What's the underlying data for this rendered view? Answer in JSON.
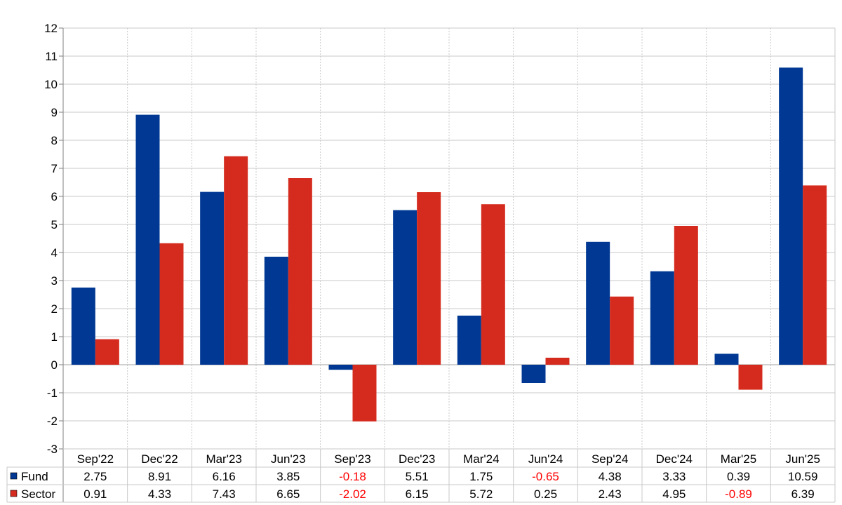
{
  "colors": {
    "fund": "#003893",
    "sector": "#D52B1E",
    "negative_text": "#FF0000",
    "grid": "#C8C8C8",
    "axis": "#808080"
  },
  "chart_data": {
    "type": "bar",
    "categories": [
      "Sep'22",
      "Dec'22",
      "Mar'23",
      "Jun'23",
      "Sep'23",
      "Dec'23",
      "Mar'24",
      "Jun'24",
      "Sep'24",
      "Dec'24",
      "Mar'25",
      "Jun'25"
    ],
    "series": [
      {
        "name": "Fund",
        "values": [
          2.75,
          8.91,
          6.16,
          3.85,
          -0.18,
          5.51,
          1.75,
          -0.65,
          4.38,
          3.33,
          0.39,
          10.59
        ],
        "labels": [
          "2.75",
          "8.91",
          "6.16",
          "3.85",
          "-0.18",
          "5.51",
          "1.75",
          "-0.65",
          "4.38",
          "3.33",
          "0.39",
          "10.59"
        ]
      },
      {
        "name": "Sector",
        "values": [
          0.91,
          4.33,
          7.43,
          6.65,
          -2.02,
          6.15,
          5.72,
          0.25,
          2.43,
          4.95,
          -0.89,
          6.39
        ],
        "labels": [
          "0.91",
          "4.33",
          "7.43",
          "6.65",
          "-2.02",
          "6.15",
          "5.72",
          "0.25",
          "2.43",
          "4.95",
          "-0.89",
          "6.39"
        ]
      }
    ],
    "ylim": [
      -3,
      12
    ],
    "yticks": [
      "-3",
      "-2",
      "-1",
      "0",
      "1",
      "2",
      "3",
      "4",
      "5",
      "6",
      "7",
      "8",
      "9",
      "10",
      "11",
      "12"
    ],
    "grid": true,
    "legend": "data-table-left"
  }
}
